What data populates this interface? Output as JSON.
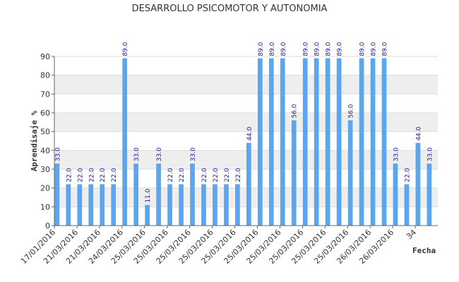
{
  "chart_data": {
    "type": "bar",
    "title": "DESARROLLO PSICOMOTOR Y AUTONOMIA",
    "xlabel": "Fecha",
    "ylabel": "Aprendisaje %",
    "ylim": [
      0,
      90
    ],
    "yticks": [
      0,
      10,
      20,
      30,
      40,
      50,
      60,
      70,
      80,
      90
    ],
    "xlim": [
      0,
      34
    ],
    "xtick_labels": [
      {
        "x": 0,
        "label": "17/01/2016"
      },
      {
        "x": 2,
        "label": "21/03/2016"
      },
      {
        "x": 4,
        "label": "21/03/2016"
      },
      {
        "x": 6,
        "label": "24/03/2016"
      },
      {
        "x": 8,
        "label": "25/03/2016"
      },
      {
        "x": 10,
        "label": "25/03/2016"
      },
      {
        "x": 12,
        "label": "25/03/2016"
      },
      {
        "x": 14,
        "label": "25/03/2016"
      },
      {
        "x": 16,
        "label": "25/03/2016"
      },
      {
        "x": 18,
        "label": "25/03/2016"
      },
      {
        "x": 20,
        "label": "25/03/2016"
      },
      {
        "x": 22,
        "label": "25/03/2016"
      },
      {
        "x": 24,
        "label": "25/03/2016"
      },
      {
        "x": 26,
        "label": "25/03/2016"
      },
      {
        "x": 28,
        "label": "26/03/2016"
      },
      {
        "x": 30,
        "label": "26/03/2016"
      },
      {
        "x": 32,
        "label": "34"
      }
    ],
    "series": [
      {
        "x": [
          0,
          1,
          2,
          3,
          4,
          5,
          6,
          7,
          8,
          9,
          10,
          11,
          12,
          13,
          14,
          15,
          16,
          17,
          18,
          19,
          20,
          21,
          22,
          23,
          24,
          25,
          26,
          27,
          28,
          29,
          30,
          31,
          32,
          33
        ],
        "values": [
          33,
          22,
          22,
          22,
          22,
          22,
          89,
          33,
          11,
          33,
          22,
          22,
          33,
          22,
          22,
          22,
          22,
          44,
          89,
          89,
          89,
          56,
          89,
          89,
          89,
          89,
          56,
          89,
          89,
          89,
          33,
          22,
          44,
          33
        ],
        "data_labels": [
          "33.0",
          "22.0",
          "22.0",
          "22.0",
          "22.0",
          "22.0",
          "89.0",
          "33.0",
          "11.0",
          "33.0",
          "22.0",
          "22.0",
          "33.0",
          "22.0",
          "22.0",
          "22.0",
          "22.0",
          "44.0",
          "89.0",
          "89.0",
          "89.0",
          "56.0",
          "89.0",
          "89.0",
          "89.0",
          "89.0",
          "56.0",
          "89.0",
          "89.0",
          "89.0",
          "33.0",
          "22.0",
          "44.0",
          "33.0"
        ]
      }
    ],
    "grid": true,
    "legend": "none",
    "colors": {
      "bar": "#5aa6f0",
      "data_label": "#1a1aa0",
      "band": "#eeeeee",
      "grid": "#dddddd",
      "axis": "#666666"
    }
  }
}
